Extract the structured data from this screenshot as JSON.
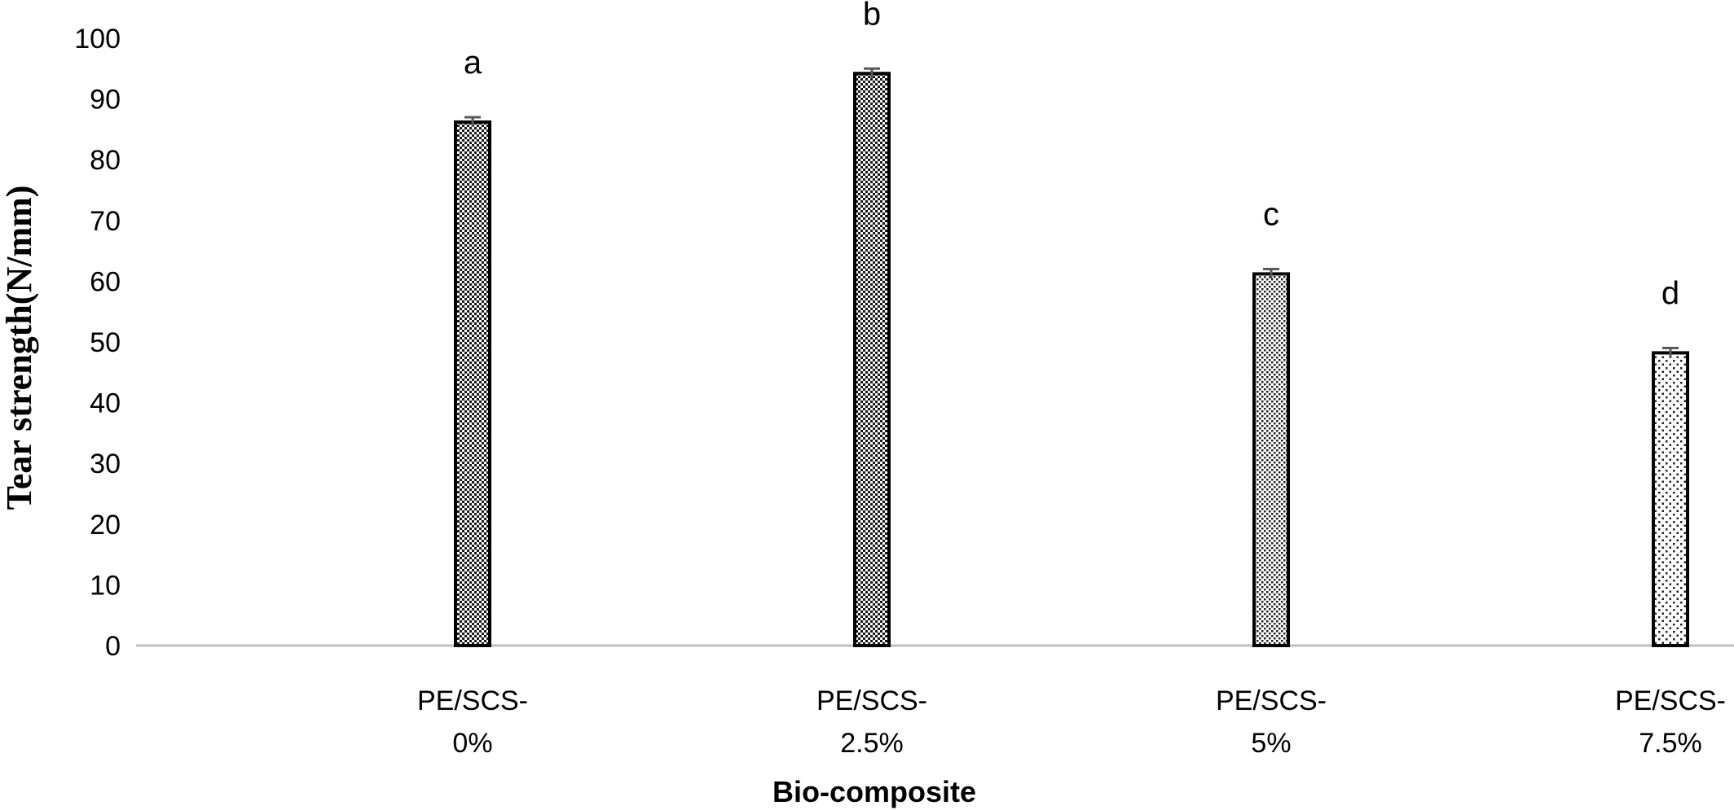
{
  "chart_data": {
    "type": "bar",
    "title": "",
    "xlabel": "Bio-composite",
    "ylabel": "Tear strength(N/mm)",
    "ylim": [
      0,
      100
    ],
    "yticks": [
      0,
      10,
      20,
      30,
      40,
      50,
      60,
      70,
      80,
      90,
      100
    ],
    "grid": false,
    "legend": "none",
    "categories": [
      [
        "PE/SCS-",
        "0%"
      ],
      [
        "PE/SCS-",
        "2.5%"
      ],
      [
        "PE/SCS-",
        "5%"
      ],
      [
        "PE/SCS-",
        "7.5%"
      ]
    ],
    "values": [
      86.2,
      94.2,
      61.2,
      48.2
    ],
    "errors": [
      0.8,
      0.8,
      0.8,
      0.8
    ],
    "significance_letters": [
      "a",
      "b",
      "c",
      "d"
    ],
    "patterns": [
      "checker-dense",
      "checker-dots",
      "dots-fine",
      "dots-sparse"
    ],
    "colors": {
      "bar_outline": "#000000",
      "axis": "#bfbfbf",
      "error_bar": "#595959"
    }
  }
}
